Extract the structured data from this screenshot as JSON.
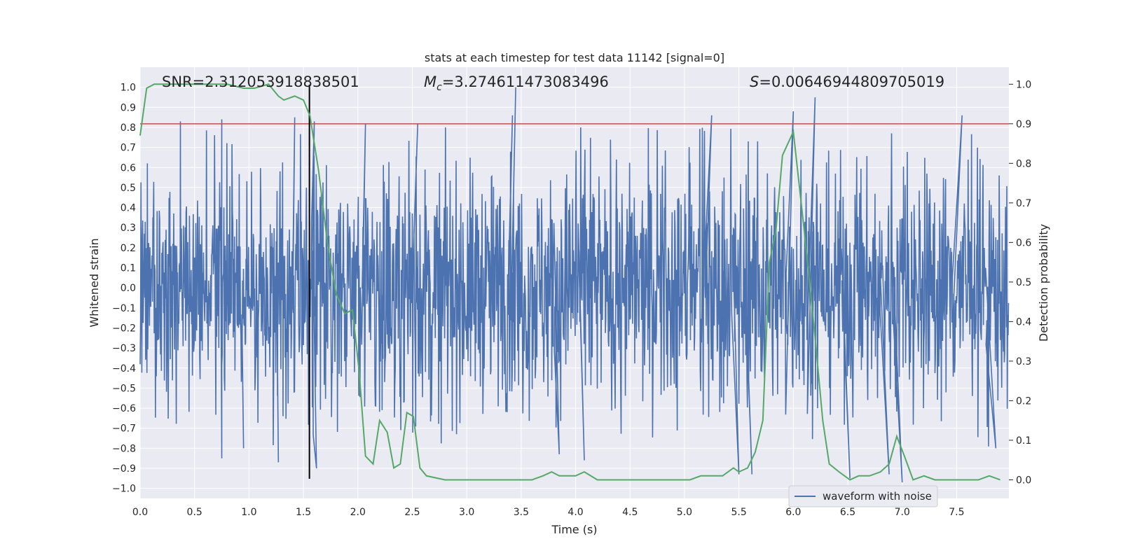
{
  "chart_data": {
    "type": "line",
    "title": "stats at each timestep for test data 11142 [signal=0]",
    "xlabel": "Time (s)",
    "ylabel": "Whitened strain",
    "y2label": "Detection probability",
    "xlim": [
      0.0,
      7.98
    ],
    "ylim": [
      -1.05,
      1.1
    ],
    "y2lim": [
      -0.047,
      1.043
    ],
    "xticks": [
      "0.0",
      "0.5",
      "1.0",
      "1.5",
      "2.0",
      "2.5",
      "3.0",
      "3.5",
      "4.0",
      "4.5",
      "5.0",
      "5.5",
      "6.0",
      "6.5",
      "7.0",
      "7.5"
    ],
    "yticks": [
      "1.0",
      "0.9",
      "0.8",
      "0.7",
      "0.6",
      "0.5",
      "0.4",
      "0.3",
      "0.2",
      "0.1",
      "0.0",
      "-0.1",
      "-0.2",
      "-0.3",
      "-0.4",
      "-0.5",
      "-0.6",
      "-0.7",
      "-0.8",
      "-0.9",
      "-1.0"
    ],
    "y2ticks": [
      "1.0",
      "0.9",
      "0.8",
      "0.7",
      "0.6",
      "0.5",
      "0.4",
      "0.3",
      "0.2",
      "0.1",
      "0.0"
    ],
    "annotations": {
      "snr": "SNR=2.312053918838501",
      "mc_symbol": "M",
      "mc_sub": "c",
      "mc_value": "=3.274611473083496",
      "s_symbol": "S",
      "s_value": "=0.00646944809705019"
    },
    "threshold_line": {
      "y2": 0.9,
      "color": "#c44e52"
    },
    "marker_line": {
      "x": 1.555,
      "color": "#000000"
    },
    "waveform": {
      "name": "waveform with noise",
      "color": "#4c72b0",
      "sample_rate": 256,
      "duration": 7.98,
      "spikes": [
        {
          "x": 0.37,
          "y": 0.83
        },
        {
          "x": 0.75,
          "y": 0.84
        },
        {
          "x": 0.75,
          "y": -0.85
        },
        {
          "x": 0.95,
          "y": -0.8
        },
        {
          "x": 1.27,
          "y": -0.87
        },
        {
          "x": 1.42,
          "y": 0.85
        },
        {
          "x": 1.6,
          "y": 0.83
        },
        {
          "x": 1.62,
          "y": -0.9
        },
        {
          "x": 2.07,
          "y": 0.82
        },
        {
          "x": 2.55,
          "y": 0.82
        },
        {
          "x": 3.45,
          "y": 1.0
        },
        {
          "x": 3.42,
          "y": 0.86
        },
        {
          "x": 3.85,
          "y": -0.83
        },
        {
          "x": 4.08,
          "y": -0.86
        },
        {
          "x": 5.25,
          "y": 0.86
        },
        {
          "x": 5.5,
          "y": -0.93
        },
        {
          "x": 5.62,
          "y": -0.93
        },
        {
          "x": 6.0,
          "y": 0.88
        },
        {
          "x": 6.2,
          "y": 0.95
        },
        {
          "x": 6.52,
          "y": -0.95
        },
        {
          "x": 6.88,
          "y": -0.93
        },
        {
          "x": 7.0,
          "y": -0.97
        },
        {
          "x": 7.55,
          "y": 0.86
        },
        {
          "x": 7.86,
          "y": -0.8
        }
      ]
    },
    "detection_probability": {
      "color": "#55a868",
      "x": [
        0.0,
        0.06,
        0.13,
        0.4,
        0.8,
        0.95,
        1.05,
        1.18,
        1.27,
        1.32,
        1.42,
        1.5,
        1.56,
        1.64,
        1.72,
        1.8,
        1.88,
        1.95,
        2.01,
        2.07,
        2.14,
        2.2,
        2.27,
        2.33,
        2.39,
        2.45,
        2.51,
        2.57,
        2.63,
        2.8,
        3.0,
        3.2,
        3.4,
        3.6,
        3.7,
        3.78,
        3.85,
        3.92,
        4.0,
        4.08,
        4.2,
        4.5,
        4.8,
        5.05,
        5.15,
        5.25,
        5.35,
        5.45,
        5.5,
        5.58,
        5.65,
        5.72,
        5.78,
        5.84,
        5.9,
        6.0,
        6.1,
        6.2,
        6.27,
        6.33,
        6.42,
        6.52,
        6.6,
        6.7,
        6.8,
        6.88,
        6.95,
        7.02,
        7.1,
        7.2,
        7.3,
        7.5,
        7.7,
        7.8,
        7.9
      ],
      "y": [
        0.87,
        0.99,
        1.0,
        1.0,
        1.0,
        0.99,
        0.99,
        1.0,
        0.97,
        0.96,
        0.97,
        0.96,
        0.92,
        0.78,
        0.6,
        0.47,
        0.42,
        0.43,
        0.28,
        0.06,
        0.04,
        0.15,
        0.12,
        0.03,
        0.04,
        0.17,
        0.16,
        0.03,
        0.01,
        0.0,
        0.0,
        0.0,
        0.0,
        0.0,
        0.01,
        0.02,
        0.01,
        0.01,
        0.01,
        0.02,
        0.0,
        0.0,
        0.0,
        0.0,
        0.01,
        0.01,
        0.01,
        0.03,
        0.02,
        0.03,
        0.07,
        0.15,
        0.55,
        0.63,
        0.82,
        0.88,
        0.63,
        0.36,
        0.15,
        0.04,
        0.02,
        0.0,
        0.01,
        0.01,
        0.02,
        0.04,
        0.11,
        0.06,
        0.0,
        0.01,
        0.0,
        0.0,
        0.0,
        0.01,
        0.0
      ]
    },
    "legend": {
      "placement": "lower-right",
      "entries": [
        "waveform with noise"
      ]
    }
  }
}
